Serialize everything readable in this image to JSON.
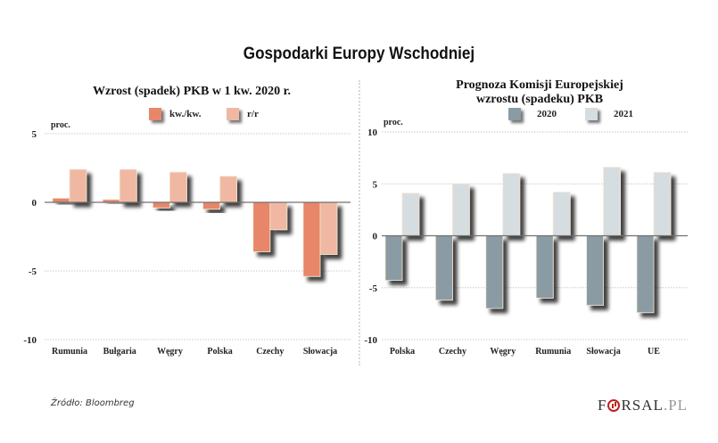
{
  "title": "Gospodarki Europy Wschodniej",
  "source": "Źródło: Bloombreg",
  "logo": {
    "prefix": "F",
    "suffix": "RSAL",
    "domain": ".PL"
  },
  "chart_data": [
    {
      "type": "bar",
      "title": "Wzrost (spadek) PKB w 1 kw. 2020 r.",
      "ylabel": "proc.",
      "xlabel": "",
      "ylim": [
        -10,
        5
      ],
      "yticks": [
        5,
        0,
        -5,
        -10
      ],
      "grid": true,
      "legend_position": "top",
      "categories": [
        "Rumunia",
        "Bułgaria",
        "Węgry",
        "Polska",
        "Czechy",
        "Słowacja"
      ],
      "series": [
        {
          "name": "kw./kw.",
          "color": "#E8866A",
          "values": [
            0.3,
            0.2,
            -0.4,
            -0.5,
            -3.6,
            -5.4
          ]
        },
        {
          "name": "r/r",
          "color": "#F0B8A2",
          "values": [
            2.4,
            2.4,
            2.2,
            1.9,
            -2.0,
            -3.8
          ]
        }
      ]
    },
    {
      "type": "bar",
      "title": "Prognoza Komisji Europejskiej wzrostu (spadeku) PKB",
      "title_lines": [
        "Prognoza Komisji Europejskiej",
        "wzrostu (spadeku) PKB"
      ],
      "ylabel": "proc.",
      "xlabel": "",
      "ylim": [
        -10,
        10
      ],
      "yticks": [
        10,
        5,
        0,
        -5,
        -10
      ],
      "grid": true,
      "legend_position": "top",
      "categories": [
        "Polska",
        "Czechy",
        "Węgry",
        "Rumunia",
        "Słowacja",
        "UE"
      ],
      "series": [
        {
          "name": "2020",
          "color": "#8A9BA4",
          "values": [
            -4.3,
            -6.2,
            -7.0,
            -6.0,
            -6.7,
            -7.4
          ]
        },
        {
          "name": "2021",
          "color": "#D6DDE1",
          "values": [
            4.1,
            5.0,
            6.0,
            4.2,
            6.6,
            6.1
          ]
        }
      ]
    }
  ]
}
